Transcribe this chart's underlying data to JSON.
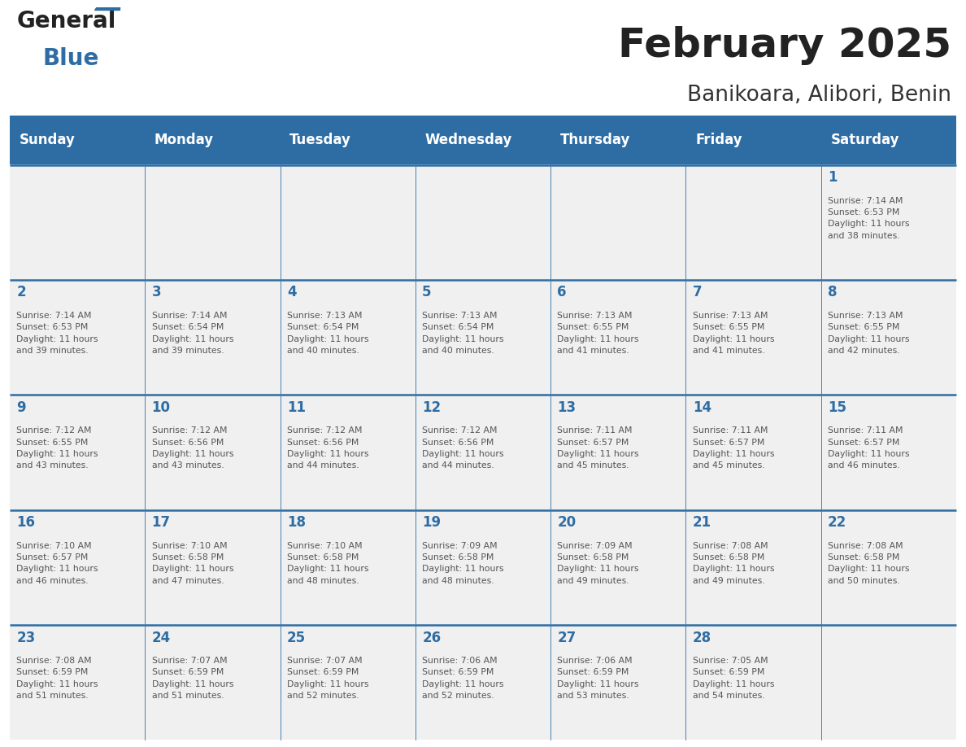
{
  "title": "February 2025",
  "subtitle": "Banikoara, Alibori, Benin",
  "header_bg": "#2E6DA4",
  "header_text_color": "#FFFFFF",
  "day_names": [
    "Sunday",
    "Monday",
    "Tuesday",
    "Wednesday",
    "Thursday",
    "Friday",
    "Saturday"
  ],
  "cell_bg_light": "#F0F0F0",
  "grid_line_color": "#2E6DA4",
  "number_color": "#2E6DA4",
  "text_color": "#555555",
  "title_color": "#222222",
  "subtitle_color": "#333333",
  "logo_general_color": "#222222",
  "logo_blue_color": "#2E6DA4",
  "weeks": [
    [
      null,
      null,
      null,
      null,
      null,
      null,
      {
        "day": 1,
        "sunrise": "7:14 AM",
        "sunset": "6:53 PM",
        "daylight": "11 hours\nand 38 minutes."
      }
    ],
    [
      {
        "day": 2,
        "sunrise": "7:14 AM",
        "sunset": "6:53 PM",
        "daylight": "11 hours\nand 39 minutes."
      },
      {
        "day": 3,
        "sunrise": "7:14 AM",
        "sunset": "6:54 PM",
        "daylight": "11 hours\nand 39 minutes."
      },
      {
        "day": 4,
        "sunrise": "7:13 AM",
        "sunset": "6:54 PM",
        "daylight": "11 hours\nand 40 minutes."
      },
      {
        "day": 5,
        "sunrise": "7:13 AM",
        "sunset": "6:54 PM",
        "daylight": "11 hours\nand 40 minutes."
      },
      {
        "day": 6,
        "sunrise": "7:13 AM",
        "sunset": "6:55 PM",
        "daylight": "11 hours\nand 41 minutes."
      },
      {
        "day": 7,
        "sunrise": "7:13 AM",
        "sunset": "6:55 PM",
        "daylight": "11 hours\nand 41 minutes."
      },
      {
        "day": 8,
        "sunrise": "7:13 AM",
        "sunset": "6:55 PM",
        "daylight": "11 hours\nand 42 minutes."
      }
    ],
    [
      {
        "day": 9,
        "sunrise": "7:12 AM",
        "sunset": "6:55 PM",
        "daylight": "11 hours\nand 43 minutes."
      },
      {
        "day": 10,
        "sunrise": "7:12 AM",
        "sunset": "6:56 PM",
        "daylight": "11 hours\nand 43 minutes."
      },
      {
        "day": 11,
        "sunrise": "7:12 AM",
        "sunset": "6:56 PM",
        "daylight": "11 hours\nand 44 minutes."
      },
      {
        "day": 12,
        "sunrise": "7:12 AM",
        "sunset": "6:56 PM",
        "daylight": "11 hours\nand 44 minutes."
      },
      {
        "day": 13,
        "sunrise": "7:11 AM",
        "sunset": "6:57 PM",
        "daylight": "11 hours\nand 45 minutes."
      },
      {
        "day": 14,
        "sunrise": "7:11 AM",
        "sunset": "6:57 PM",
        "daylight": "11 hours\nand 45 minutes."
      },
      {
        "day": 15,
        "sunrise": "7:11 AM",
        "sunset": "6:57 PM",
        "daylight": "11 hours\nand 46 minutes."
      }
    ],
    [
      {
        "day": 16,
        "sunrise": "7:10 AM",
        "sunset": "6:57 PM",
        "daylight": "11 hours\nand 46 minutes."
      },
      {
        "day": 17,
        "sunrise": "7:10 AM",
        "sunset": "6:58 PM",
        "daylight": "11 hours\nand 47 minutes."
      },
      {
        "day": 18,
        "sunrise": "7:10 AM",
        "sunset": "6:58 PM",
        "daylight": "11 hours\nand 48 minutes."
      },
      {
        "day": 19,
        "sunrise": "7:09 AM",
        "sunset": "6:58 PM",
        "daylight": "11 hours\nand 48 minutes."
      },
      {
        "day": 20,
        "sunrise": "7:09 AM",
        "sunset": "6:58 PM",
        "daylight": "11 hours\nand 49 minutes."
      },
      {
        "day": 21,
        "sunrise": "7:08 AM",
        "sunset": "6:58 PM",
        "daylight": "11 hours\nand 49 minutes."
      },
      {
        "day": 22,
        "sunrise": "7:08 AM",
        "sunset": "6:58 PM",
        "daylight": "11 hours\nand 50 minutes."
      }
    ],
    [
      {
        "day": 23,
        "sunrise": "7:08 AM",
        "sunset": "6:59 PM",
        "daylight": "11 hours\nand 51 minutes."
      },
      {
        "day": 24,
        "sunrise": "7:07 AM",
        "sunset": "6:59 PM",
        "daylight": "11 hours\nand 51 minutes."
      },
      {
        "day": 25,
        "sunrise": "7:07 AM",
        "sunset": "6:59 PM",
        "daylight": "11 hours\nand 52 minutes."
      },
      {
        "day": 26,
        "sunrise": "7:06 AM",
        "sunset": "6:59 PM",
        "daylight": "11 hours\nand 52 minutes."
      },
      {
        "day": 27,
        "sunrise": "7:06 AM",
        "sunset": "6:59 PM",
        "daylight": "11 hours\nand 53 minutes."
      },
      {
        "day": 28,
        "sunrise": "7:05 AM",
        "sunset": "6:59 PM",
        "daylight": "11 hours\nand 54 minutes."
      },
      null
    ]
  ]
}
